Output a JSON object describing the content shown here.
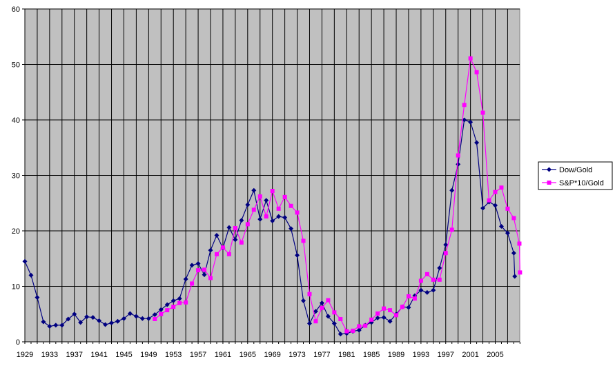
{
  "chart_data": {
    "type": "line",
    "title": "",
    "xlabel": "",
    "ylabel": "",
    "xlim": [
      1929,
      2008
    ],
    "ylim": [
      0,
      60
    ],
    "x_ticks": [
      1929,
      1933,
      1937,
      1941,
      1945,
      1949,
      1953,
      1957,
      1961,
      1965,
      1969,
      1973,
      1977,
      1981,
      1985,
      1989,
      1993,
      1997,
      2001,
      2005
    ],
    "y_ticks": [
      0,
      10,
      20,
      30,
      40,
      50,
      60
    ],
    "grid": true,
    "legend_position": "right",
    "plot_background": "#c0c0c0",
    "series": [
      {
        "name": "Dow/Gold",
        "color": "#000080",
        "marker": "diamond",
        "points": [
          [
            1929,
            14.5
          ],
          [
            1930,
            12.0
          ],
          [
            1931,
            8.0
          ],
          [
            1932,
            3.6
          ],
          [
            1933,
            2.8
          ],
          [
            1934,
            3.0
          ],
          [
            1935,
            3.0
          ],
          [
            1936,
            4.1
          ],
          [
            1937,
            5.0
          ],
          [
            1938,
            3.5
          ],
          [
            1939,
            4.5
          ],
          [
            1940,
            4.4
          ],
          [
            1941,
            3.8
          ],
          [
            1942,
            3.1
          ],
          [
            1943,
            3.4
          ],
          [
            1944,
            3.7
          ],
          [
            1945,
            4.2
          ],
          [
            1946,
            5.1
          ],
          [
            1947,
            4.6
          ],
          [
            1948,
            4.2
          ],
          [
            1949,
            4.2
          ],
          [
            1950,
            4.9
          ],
          [
            1951,
            5.8
          ],
          [
            1952,
            6.7
          ],
          [
            1953,
            7.4
          ],
          [
            1954,
            7.8
          ],
          [
            1955,
            11.3
          ],
          [
            1956,
            13.8
          ],
          [
            1957,
            14.1
          ],
          [
            1958,
            12.1
          ],
          [
            1959,
            16.5
          ],
          [
            1960,
            19.2
          ],
          [
            1961,
            16.9
          ],
          [
            1962,
            20.6
          ],
          [
            1963,
            18.4
          ],
          [
            1964,
            21.9
          ],
          [
            1965,
            24.7
          ],
          [
            1966,
            27.3
          ],
          [
            1967,
            22.1
          ],
          [
            1968,
            25.5
          ],
          [
            1969,
            21.8
          ],
          [
            1970,
            22.6
          ],
          [
            1971,
            22.4
          ],
          [
            1972,
            20.4
          ],
          [
            1973,
            15.6
          ],
          [
            1974,
            7.4
          ],
          [
            1975,
            3.3
          ],
          [
            1976,
            5.5
          ],
          [
            1977,
            7.0
          ],
          [
            1978,
            4.6
          ],
          [
            1979,
            3.3
          ],
          [
            1980,
            1.4
          ],
          [
            1981,
            1.5
          ],
          [
            1982,
            1.9
          ],
          [
            1983,
            2.1
          ],
          [
            1984,
            3.0
          ],
          [
            1985,
            3.5
          ],
          [
            1986,
            4.3
          ],
          [
            1987,
            4.4
          ],
          [
            1988,
            3.7
          ],
          [
            1989,
            5.0
          ],
          [
            1990,
            6.3
          ],
          [
            1991,
            6.2
          ],
          [
            1992,
            8.3
          ],
          [
            1993,
            9.3
          ],
          [
            1994,
            8.9
          ],
          [
            1995,
            9.3
          ],
          [
            1996,
            13.3
          ],
          [
            1997,
            17.5
          ],
          [
            1998,
            27.3
          ],
          [
            1999,
            32.0
          ],
          [
            2000,
            40.0
          ],
          [
            2001,
            39.6
          ],
          [
            2002,
            35.9
          ],
          [
            2003,
            24.1
          ],
          [
            2004,
            25.2
          ],
          [
            2005,
            24.6
          ],
          [
            2006,
            20.8
          ],
          [
            2007,
            19.6
          ],
          [
            2008,
            16.0
          ],
          [
            2008.15,
            11.8
          ]
        ]
      },
      {
        "name": "S&P*10/Gold",
        "color": "#ff00ff",
        "marker": "square",
        "points": [
          [
            1950,
            4.1
          ],
          [
            1951,
            5.0
          ],
          [
            1952,
            5.7
          ],
          [
            1953,
            6.3
          ],
          [
            1954,
            7.0
          ],
          [
            1955,
            7.1
          ],
          [
            1956,
            10.5
          ],
          [
            1957,
            12.9
          ],
          [
            1958,
            13.0
          ],
          [
            1959,
            11.5
          ],
          [
            1960,
            15.8
          ],
          [
            1961,
            17.0
          ],
          [
            1962,
            15.8
          ],
          [
            1963,
            20.5
          ],
          [
            1964,
            17.9
          ],
          [
            1965,
            21.2
          ],
          [
            1966,
            23.8
          ],
          [
            1967,
            26.2
          ],
          [
            1968,
            22.6
          ],
          [
            1969,
            27.2
          ],
          [
            1970,
            24.0
          ],
          [
            1971,
            26.1
          ],
          [
            1972,
            24.5
          ],
          [
            1973,
            23.3
          ],
          [
            1974,
            18.2
          ],
          [
            1975,
            8.6
          ],
          [
            1976,
            3.7
          ],
          [
            1977,
            6.1
          ],
          [
            1978,
            7.5
          ],
          [
            1979,
            5.3
          ],
          [
            1980,
            4.1
          ],
          [
            1981,
            1.9
          ],
          [
            1982,
            2.0
          ],
          [
            1983,
            2.8
          ],
          [
            1984,
            2.9
          ],
          [
            1985,
            4.0
          ],
          [
            1986,
            5.1
          ],
          [
            1987,
            6.0
          ],
          [
            1988,
            5.7
          ],
          [
            1989,
            4.8
          ],
          [
            1990,
            6.3
          ],
          [
            1991,
            8.2
          ],
          [
            1992,
            7.8
          ],
          [
            1993,
            11.0
          ],
          [
            1994,
            12.2
          ],
          [
            1995,
            11.2
          ],
          [
            1996,
            11.2
          ],
          [
            1997,
            16.0
          ],
          [
            1998,
            20.2
          ],
          [
            1999,
            33.6
          ],
          [
            2000,
            42.7
          ],
          [
            2001,
            51.1
          ],
          [
            2002,
            48.6
          ],
          [
            2003,
            41.3
          ],
          [
            2004,
            25.5
          ],
          [
            2005,
            27.0
          ],
          [
            2006,
            27.8
          ],
          [
            2007,
            24.0
          ],
          [
            2008,
            22.3
          ],
          [
            2008.9,
            17.7
          ],
          [
            2009.0,
            12.5
          ]
        ]
      }
    ]
  }
}
